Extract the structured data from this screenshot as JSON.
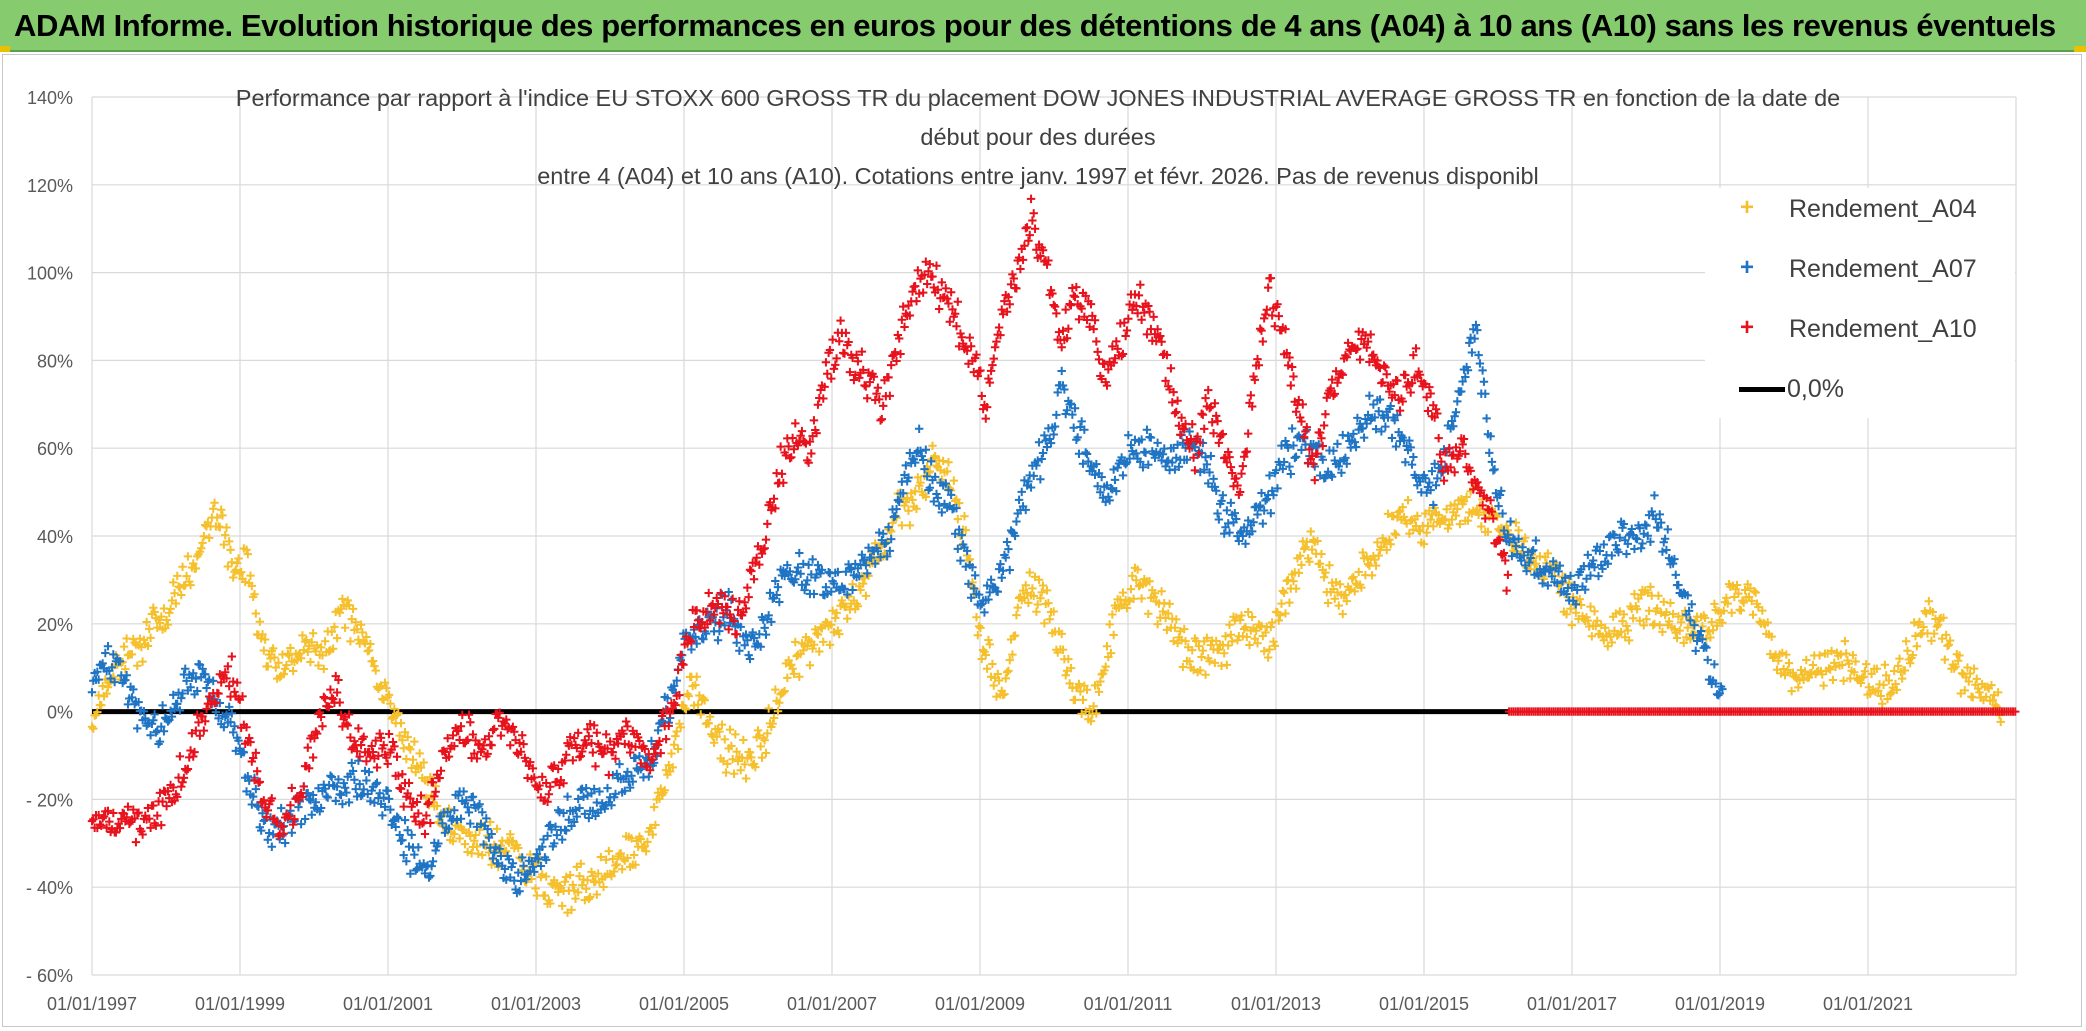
{
  "banner": {
    "title": "ADAM Informe. Evolution historique des performances en euros pour des détentions de 4 ans (A04) à 10 ans (A10) sans les revenus éventuels"
  },
  "colors": {
    "a04": "#f5c02c",
    "a07": "#1f74c4",
    "a10": "#e8121c",
    "zero": "#000000",
    "banner": "#86cc6f"
  },
  "chart_data": {
    "type": "scatter",
    "title_lines": [
      "Performance par rapport à l'indice EU STOXX 600 GROSS TR  du placement DOW JONES INDUSTRIAL AVERAGE GROSS TR en fonction de la date de",
      "début pour des durées",
      "entre 4 (A04) et 10 ans (A10). Cotations entre janv. 1997 et févr. 2026. Pas de revenus disponibl"
    ],
    "x_range": [
      1997.0,
      2023.0
    ],
    "x_ticks": [
      {
        "label": "01/01/1997",
        "value": 1997
      },
      {
        "label": "01/01/1999",
        "value": 1999
      },
      {
        "label": "01/01/2001",
        "value": 2001
      },
      {
        "label": "01/01/2003",
        "value": 2003
      },
      {
        "label": "01/01/2005",
        "value": 2005
      },
      {
        "label": "01/01/2007",
        "value": 2007
      },
      {
        "label": "01/01/2009",
        "value": 2009
      },
      {
        "label": "01/01/2011",
        "value": 2011
      },
      {
        "label": "01/01/2013",
        "value": 2013
      },
      {
        "label": "01/01/2015",
        "value": 2015
      },
      {
        "label": "01/01/2017",
        "value": 2017
      },
      {
        "label": "01/01/2019",
        "value": 2019
      },
      {
        "label": "01/01/2021",
        "value": 2021
      }
    ],
    "y_range": [
      -60,
      140
    ],
    "y_ticks": [
      {
        "label": "140%",
        "value": 140
      },
      {
        "label": "120%",
        "value": 120
      },
      {
        "label": "100%",
        "value": 100
      },
      {
        "label": "80%",
        "value": 80
      },
      {
        "label": "60%",
        "value": 60
      },
      {
        "label": "40%",
        "value": 40
      },
      {
        "label": "20%",
        "value": 20
      },
      {
        "label": "0%",
        "value": 0
      },
      {
        "label": "- 20%",
        "value": -20
      },
      {
        "label": "- 40%",
        "value": -40
      },
      {
        "label": "- 60%",
        "value": -60
      }
    ],
    "zero_line_until": 2016.15,
    "series": [
      {
        "name": "Rendement_A04",
        "key": "a04",
        "end": 2022.8,
        "x": [
          1997.0,
          1997.3,
          1997.6,
          1997.9,
          1998.2,
          1998.5,
          1998.65,
          1998.8,
          1998.95,
          1999.1,
          1999.3,
          1999.5,
          1999.7,
          1999.9,
          2000.1,
          2000.4,
          2000.65,
          2000.9,
          2001.2,
          2001.5,
          2001.8,
          2002.1,
          2002.4,
          2002.7,
          2003.0,
          2003.3,
          2003.6,
          2003.9,
          2004.2,
          2004.5,
          2004.7,
          2004.9,
          2005.1,
          2005.3,
          2005.5,
          2005.7,
          2005.9,
          2006.1,
          2006.4,
          2006.7,
          2007.0,
          2007.3,
          2007.6,
          2007.9,
          2008.2,
          2008.4,
          2008.6,
          2008.8,
          2009.0,
          2009.3,
          2009.6,
          2009.9,
          2010.2,
          2010.5,
          2010.8,
          2011.1,
          2011.4,
          2011.7,
          2012.0,
          2012.3,
          2012.6,
          2012.9,
          2013.2,
          2013.5,
          2013.8,
          2014.1,
          2014.4,
          2014.7,
          2015.0,
          2015.3,
          2015.6,
          2015.9,
          2016.2,
          2016.5,
          2016.8,
          2017.1,
          2017.4,
          2017.7,
          2018.0,
          2018.3,
          2018.6,
          2018.9,
          2019.2,
          2019.5,
          2019.8,
          2020.1,
          2020.4,
          2020.7,
          2021.0,
          2021.3,
          2021.6,
          2021.9,
          2022.2,
          2022.5,
          2022.8
        ],
        "y": [
          -2,
          8,
          15,
          20,
          28,
          38,
          46,
          40,
          32,
          34,
          15,
          10,
          12,
          16,
          12,
          22,
          18,
          5,
          -5,
          -15,
          -25,
          -30,
          -30,
          -32,
          -38,
          -42,
          -40,
          -38,
          -33,
          -28,
          -20,
          -5,
          5,
          0,
          -8,
          -10,
          -12,
          -5,
          10,
          15,
          20,
          25,
          35,
          45,
          50,
          58,
          52,
          40,
          15,
          5,
          28,
          25,
          10,
          -2,
          20,
          30,
          25,
          15,
          12,
          15,
          20,
          15,
          30,
          38,
          25,
          30,
          38,
          45,
          42,
          45,
          48,
          45,
          40,
          35,
          30,
          22,
          18,
          20,
          25,
          22,
          18,
          20,
          28,
          25,
          10,
          8,
          10,
          12,
          8,
          6,
          15,
          22,
          10,
          5,
          1
        ]
      },
      {
        "name": "Rendement_A07",
        "key": "a07",
        "end": 2019.05,
        "x": [
          1997.0,
          1997.2,
          1997.4,
          1997.6,
          1997.9,
          1998.2,
          1998.45,
          1998.7,
          1998.9,
          1999.1,
          1999.3,
          1999.5,
          1999.75,
          2000.0,
          2000.3,
          2000.6,
          2000.9,
          2001.1,
          2001.3,
          2001.5,
          2001.7,
          2001.95,
          2002.2,
          2002.4,
          2002.6,
          2002.8,
          2003.0,
          2003.2,
          2003.4,
          2003.6,
          2003.8,
          2004.0,
          2004.2,
          2004.5,
          2004.8,
          2005.0,
          2005.3,
          2005.6,
          2005.9,
          2006.1,
          2006.4,
          2006.7,
          2007.0,
          2007.3,
          2007.6,
          2007.8,
          2008.0,
          2008.2,
          2008.4,
          2008.6,
          2008.8,
          2009.0,
          2009.3,
          2009.6,
          2009.9,
          2010.1,
          2010.3,
          2010.5,
          2010.7,
          2011.0,
          2011.3,
          2011.6,
          2011.9,
          2012.1,
          2012.3,
          2012.6,
          2012.9,
          2013.1,
          2013.4,
          2013.7,
          2014.0,
          2014.3,
          2014.6,
          2014.9,
          2015.1,
          2015.3,
          2015.5,
          2015.7,
          2015.9,
          2016.1,
          2016.4,
          2016.7,
          2017.0,
          2017.3,
          2017.6,
          2017.9,
          2018.1,
          2018.35,
          2018.6,
          2018.85,
          2019.05
        ],
        "y": [
          5,
          12,
          8,
          0,
          -5,
          5,
          8,
          2,
          -5,
          -15,
          -25,
          -28,
          -22,
          -20,
          -18,
          -15,
          -20,
          -25,
          -32,
          -37,
          -28,
          -20,
          -22,
          -30,
          -35,
          -38,
          -34,
          -28,
          -25,
          -20,
          -22,
          -18,
          -15,
          -12,
          2,
          15,
          20,
          22,
          15,
          20,
          33,
          30,
          28,
          32,
          35,
          40,
          55,
          60,
          50,
          48,
          35,
          25,
          30,
          50,
          60,
          75,
          65,
          55,
          50,
          58,
          60,
          58,
          62,
          55,
          45,
          40,
          48,
          58,
          62,
          55,
          60,
          70,
          65,
          55,
          50,
          60,
          75,
          85,
          60,
          40,
          35,
          32,
          28,
          35,
          38,
          40,
          45,
          35,
          22,
          10,
          3
        ]
      },
      {
        "name": "Rendement_A10",
        "key": "a10",
        "end": 2016.15,
        "x": [
          1997.0,
          1997.3,
          1997.6,
          1997.9,
          1998.1,
          1998.3,
          1998.5,
          1998.7,
          1998.9,
          1999.1,
          1999.3,
          1999.5,
          1999.8,
          2000.1,
          2000.3,
          2000.5,
          2000.7,
          2000.9,
          2001.1,
          2001.3,
          2001.5,
          2001.7,
          2001.9,
          2002.1,
          2002.3,
          2002.5,
          2002.7,
          2002.9,
          2003.1,
          2003.3,
          2003.5,
          2003.7,
          2003.9,
          2004.1,
          2004.3,
          2004.5,
          2004.7,
          2004.9,
          2005.1,
          2005.4,
          2005.7,
          2005.9,
          2006.1,
          2006.3,
          2006.5,
          2006.7,
          2006.9,
          2007.1,
          2007.3,
          2007.5,
          2007.7,
          2007.9,
          2008.1,
          2008.3,
          2008.5,
          2008.7,
          2008.9,
          2009.1,
          2009.3,
          2009.5,
          2009.7,
          2009.9,
          2010.1,
          2010.3,
          2010.5,
          2010.7,
          2010.9,
          2011.1,
          2011.3,
          2011.5,
          2011.7,
          2011.9,
          2012.1,
          2012.3,
          2012.5,
          2012.7,
          2012.9,
          2013.1,
          2013.3,
          2013.5,
          2013.7,
          2013.9,
          2014.1,
          2014.3,
          2014.5,
          2014.7,
          2014.9,
          2015.1,
          2015.3,
          2015.5,
          2015.7,
          2015.9,
          2016.15
        ],
        "y": [
          -25,
          -25,
          -26,
          -22,
          -20,
          -10,
          -2,
          5,
          8,
          -5,
          -20,
          -25,
          -20,
          0,
          5,
          -5,
          -10,
          -8,
          -12,
          -20,
          -25,
          -12,
          -5,
          -5,
          -10,
          0,
          -5,
          -12,
          -18,
          -15,
          -8,
          -5,
          -10,
          -8,
          -6,
          -10,
          -5,
          5,
          20,
          25,
          20,
          30,
          40,
          55,
          62,
          60,
          75,
          85,
          80,
          75,
          70,
          85,
          95,
          100,
          95,
          88,
          80,
          70,
          90,
          100,
          112,
          100,
          85,
          95,
          90,
          75,
          85,
          95,
          90,
          80,
          65,
          60,
          70,
          60,
          50,
          75,
          95,
          85,
          70,
          55,
          70,
          80,
          85,
          82,
          78,
          72,
          80,
          70,
          55,
          60,
          50,
          45,
          30
        ]
      }
    ]
  },
  "legend": {
    "items": [
      {
        "label": "Rendement_A04"
      },
      {
        "label": "Rendement_A07"
      },
      {
        "label": "Rendement_A10"
      },
      {
        "label": "0,0%"
      }
    ]
  }
}
